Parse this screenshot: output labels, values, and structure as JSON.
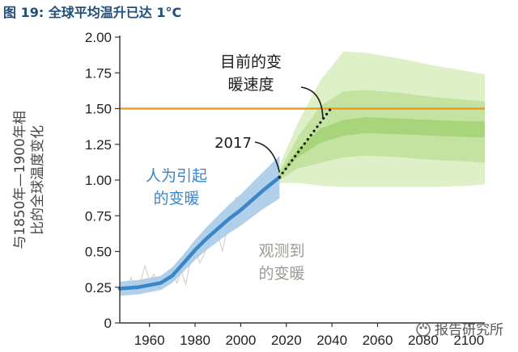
{
  "figure_title": "图 19: 全球平均温升已达 1°C",
  "watermark": "报告研究所",
  "chart_data": {
    "type": "area",
    "ylabel_lines": [
      "与1850年—1900年相",
      "比的全球温度变化"
    ],
    "xlim": [
      1947,
      2107
    ],
    "ylim": [
      0,
      2.0
    ],
    "x_ticks": [
      1960,
      1980,
      2000,
      2020,
      2040,
      2060,
      2080,
      2100
    ],
    "y_ticks": [
      "0",
      "0.25",
      "0.50",
      "0.75",
      "1.00",
      "1.25",
      "1.50",
      "1.75",
      "2.00"
    ],
    "threshold": {
      "value": 1.5,
      "label": "1.50",
      "color": "#f29b1d"
    },
    "series": [
      {
        "label": "人为引起的变暖",
        "label_lines": [
          "人为引起",
          "的变暖"
        ],
        "color": "#3a86c8",
        "band_color": "#a9cbe8",
        "x": [
          1947,
          1955,
          1965,
          1970,
          1975,
          1980,
          1985,
          1990,
          1995,
          2000,
          2005,
          2010,
          2017
        ],
        "y": [
          0.24,
          0.25,
          0.28,
          0.33,
          0.42,
          0.51,
          0.59,
          0.66,
          0.73,
          0.79,
          0.86,
          0.93,
          1.02
        ],
        "lower": [
          0.19,
          0.2,
          0.23,
          0.28,
          0.36,
          0.44,
          0.51,
          0.57,
          0.63,
          0.68,
          0.74,
          0.8,
          0.87
        ],
        "upper": [
          0.29,
          0.3,
          0.33,
          0.39,
          0.48,
          0.58,
          0.67,
          0.75,
          0.83,
          0.9,
          0.98,
          1.06,
          1.17
        ]
      },
      {
        "label": "观测到的变暖",
        "label_lines": [
          "观测到",
          "的变暖"
        ],
        "color": "#d8d3c8",
        "x": [
          1950,
          1952,
          1954,
          1956,
          1958,
          1960,
          1962,
          1964,
          1966,
          1968,
          1970,
          1972,
          1974,
          1976,
          1978,
          1980,
          1982,
          1984,
          1986,
          1988,
          1990,
          1992,
          1994,
          1996,
          1998,
          2000,
          2002,
          2004,
          2006,
          2008,
          2010,
          2012,
          2014,
          2016
        ],
        "y": [
          0.25,
          0.32,
          0.22,
          0.28,
          0.4,
          0.3,
          0.34,
          0.24,
          0.33,
          0.3,
          0.38,
          0.28,
          0.36,
          0.27,
          0.45,
          0.52,
          0.42,
          0.48,
          0.56,
          0.65,
          0.62,
          0.5,
          0.66,
          0.7,
          0.88,
          0.78,
          0.9,
          0.86,
          0.92,
          0.84,
          0.98,
          0.92,
          1.0,
          1.12
        ]
      }
    ],
    "projection": {
      "label": "目前的变暖速度",
      "label_lines": [
        "目前的变",
        "暖速度"
      ],
      "color": "#1b1b1b",
      "x": [
        2017,
        2040
      ],
      "y": [
        1.02,
        1.51
      ]
    },
    "projection_bands": [
      {
        "color": "#def0c8",
        "x": [
          2017,
          2025,
          2035,
          2045,
          2055,
          2070,
          2085,
          2100,
          2107
        ],
        "lower": [
          0.98,
          0.98,
          0.96,
          0.95,
          0.95,
          0.95,
          0.95,
          0.96,
          0.97
        ],
        "upper": [
          1.1,
          1.4,
          1.7,
          1.9,
          1.89,
          1.85,
          1.8,
          1.76,
          1.74
        ]
      },
      {
        "color": "#c4e3a1",
        "x": [
          2017,
          2025,
          2035,
          2045,
          2055,
          2070,
          2085,
          2100,
          2107
        ],
        "lower": [
          1.0,
          1.08,
          1.12,
          1.16,
          1.17,
          1.16,
          1.14,
          1.13,
          1.12
        ],
        "upper": [
          1.06,
          1.3,
          1.52,
          1.62,
          1.63,
          1.61,
          1.58,
          1.56,
          1.55
        ]
      },
      {
        "color": "#a8d47c",
        "x": [
          2017,
          2025,
          2035,
          2045,
          2055,
          2070,
          2085,
          2100,
          2107
        ],
        "lower": [
          1.02,
          1.16,
          1.26,
          1.31,
          1.33,
          1.32,
          1.31,
          1.3,
          1.3
        ],
        "upper": [
          1.04,
          1.22,
          1.36,
          1.42,
          1.44,
          1.43,
          1.42,
          1.41,
          1.41
        ]
      }
    ],
    "annotation": {
      "text": "2017",
      "x": 2017,
      "y": 1.02
    },
    "grid": false
  }
}
